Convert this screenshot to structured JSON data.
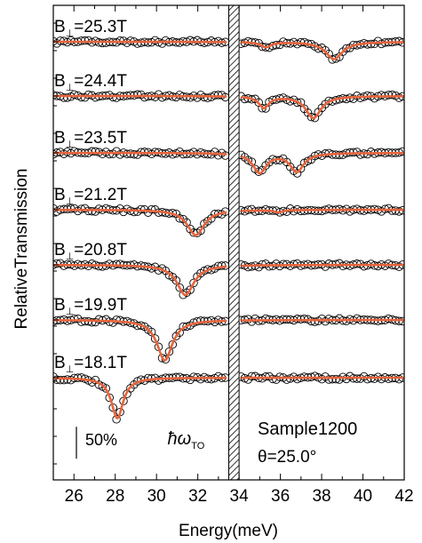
{
  "chart_data": {
    "type": "line",
    "title": "",
    "xlabel": "Energy(meV)",
    "ylabel": "RelativeTransmission",
    "xlim": [
      25,
      42
    ],
    "xticks": [
      26,
      28,
      30,
      32,
      34,
      36,
      38,
      40,
      42
    ],
    "x_minor_step": 1,
    "grid": false,
    "phonon_band": [
      33.5,
      34.0
    ],
    "phonon_label": "ħω",
    "phonon_label_sub": "TO",
    "scale_bar_label": "50%",
    "scale_bar_fraction": 0.5,
    "annotation_sample": "Sample1200",
    "annotation_angle": "θ=25.0°",
    "field_prefix": "B",
    "field_sub": "⊥",
    "fit_color": "#e8643c",
    "marker_color": "#000000",
    "series": [
      {
        "field": "=25.3T",
        "dips": [
          {
            "e": 35.3,
            "d": 0.09,
            "w": 0.3
          },
          {
            "e": 38.6,
            "d": 0.3,
            "w": 0.5
          }
        ]
      },
      {
        "field": "=24.4T",
        "dips": [
          {
            "e": 35.2,
            "d": 0.2,
            "w": 0.3
          },
          {
            "e": 37.6,
            "d": 0.38,
            "w": 0.45
          }
        ]
      },
      {
        "field": "=23.5T",
        "dips": [
          {
            "e": 35.0,
            "d": 0.34,
            "w": 0.4
          },
          {
            "e": 36.8,
            "d": 0.32,
            "w": 0.4
          }
        ]
      },
      {
        "field": "=21.2T",
        "dips": [
          {
            "e": 31.9,
            "d": 0.44,
            "w": 0.5
          },
          {
            "e": 35.9,
            "d": 0.04,
            "w": 0.25
          }
        ]
      },
      {
        "field": "=20.8T",
        "dips": [
          {
            "e": 31.4,
            "d": 0.52,
            "w": 0.5
          }
        ]
      },
      {
        "field": "=19.9T",
        "dips": [
          {
            "e": 30.4,
            "d": 0.7,
            "w": 0.45
          }
        ]
      },
      {
        "field": "=18.1T",
        "dips": [
          {
            "e": 28.1,
            "d": 0.7,
            "w": 0.35
          }
        ]
      }
    ]
  }
}
